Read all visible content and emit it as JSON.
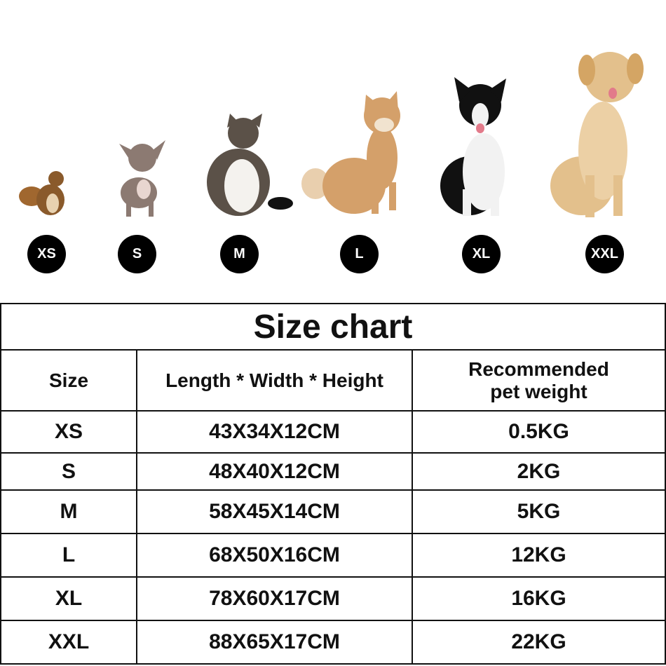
{
  "sizes": [
    "XS",
    "S",
    "M",
    "L",
    "XL",
    "XXL"
  ],
  "animals": [
    "squirrel",
    "chihuahua",
    "cat",
    "shiba-inu",
    "border-collie",
    "golden-retriever"
  ],
  "table": {
    "title": "Size chart",
    "headers": [
      "Size",
      "Length * Width * Height",
      "Recommended pet weight"
    ],
    "rows": [
      [
        "XS",
        "43X34X12CM",
        "0.5KG"
      ],
      [
        "S",
        "48X40X12CM",
        "2KG"
      ],
      [
        "M",
        "58X45X14CM",
        "5KG"
      ],
      [
        "L",
        "68X50X16CM",
        "12KG"
      ],
      [
        "XL",
        "78X60X17CM",
        "16KG"
      ],
      [
        "XXL",
        "88X65X17CM",
        "22KG"
      ]
    ]
  }
}
